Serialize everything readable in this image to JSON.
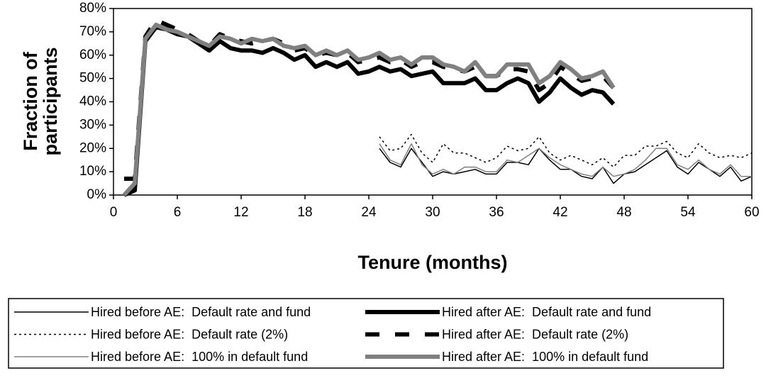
{
  "chart_data": {
    "type": "line",
    "xlabel": "Tenure (months)",
    "ylabel": [
      "Fraction of",
      "participants"
    ],
    "x": [
      1,
      2,
      3,
      4,
      5,
      6,
      7,
      8,
      9,
      10,
      11,
      12,
      13,
      14,
      15,
      16,
      17,
      18,
      19,
      20,
      21,
      22,
      23,
      24,
      25,
      26,
      27,
      28,
      29,
      30,
      31,
      32,
      33,
      34,
      35,
      36,
      37,
      38,
      39,
      40,
      41,
      42,
      43,
      44,
      45,
      46,
      47,
      48,
      49,
      50,
      51,
      52,
      53,
      54,
      55,
      56,
      57,
      58,
      59,
      60
    ],
    "xlim": [
      0,
      60
    ],
    "xticks": [
      0,
      6,
      12,
      18,
      24,
      30,
      36,
      42,
      48,
      54,
      60
    ],
    "ylim": [
      0,
      80
    ],
    "yticks": [
      {
        "value": 0,
        "label": "0%"
      },
      {
        "value": 10,
        "label": "10%"
      },
      {
        "value": 20,
        "label": "20%"
      },
      {
        "value": 30,
        "label": "30%"
      },
      {
        "value": 40,
        "label": "40%"
      },
      {
        "value": 50,
        "label": "50%"
      },
      {
        "value": 60,
        "label": "60%"
      },
      {
        "value": 70,
        "label": "70%"
      },
      {
        "value": 80,
        "label": "80%"
      }
    ],
    "series": [
      {
        "name": "Hired before AE:  Default rate and fund",
        "color": "#000000",
        "line_width": 1.5,
        "dash": "solid",
        "values": [
          null,
          null,
          null,
          null,
          null,
          null,
          null,
          null,
          null,
          null,
          null,
          null,
          null,
          null,
          null,
          null,
          null,
          null,
          null,
          null,
          null,
          null,
          null,
          null,
          20,
          14,
          12,
          20,
          14,
          8,
          10,
          9,
          10,
          11,
          9,
          9,
          14,
          14,
          13,
          20,
          15,
          11,
          11,
          8,
          7,
          12,
          5,
          9,
          10,
          13,
          16,
          19,
          12,
          9,
          14,
          11,
          8,
          12,
          6,
          8
        ]
      },
      {
        "name": "Hired before AE:  Default rate (2%)",
        "color": "#000000",
        "line_width": 1.5,
        "dash": "dotted",
        "values": [
          null,
          null,
          null,
          null,
          null,
          null,
          null,
          null,
          null,
          null,
          null,
          null,
          null,
          null,
          null,
          null,
          null,
          null,
          null,
          null,
          null,
          null,
          null,
          null,
          25,
          19,
          20,
          26,
          18,
          14,
          22,
          18,
          18,
          16,
          14,
          16,
          21,
          19,
          20,
          25,
          18,
          15,
          17,
          15,
          13,
          16,
          12,
          17,
          17,
          21,
          21,
          23,
          18,
          16,
          22,
          18,
          16,
          17,
          16,
          18
        ]
      },
      {
        "name": "Hired before AE:  100% in default fund",
        "color": "#808080",
        "line_width": 1.5,
        "dash": "solid",
        "values": [
          null,
          null,
          null,
          null,
          null,
          null,
          null,
          null,
          null,
          null,
          null,
          null,
          null,
          null,
          null,
          null,
          null,
          null,
          null,
          null,
          null,
          null,
          null,
          null,
          22,
          15,
          13,
          22,
          13,
          9,
          11,
          9,
          12,
          12,
          10,
          10,
          15,
          14,
          17,
          20,
          16,
          13,
          11,
          9,
          8,
          12,
          8,
          9,
          11,
          15,
          20,
          20,
          13,
          11,
          15,
          11,
          9,
          13,
          8,
          8
        ]
      },
      {
        "name": "Hired after AE:  Default rate and fund",
        "color": "#000000",
        "line_width": 6,
        "dash": "solid",
        "values": [
          0,
          2,
          66,
          72,
          71,
          69,
          68,
          65,
          62,
          66,
          63,
          62,
          62,
          61,
          63,
          61,
          58,
          60,
          55,
          57,
          55,
          57,
          52,
          53,
          55,
          53,
          54,
          51,
          52,
          53,
          48,
          48,
          48,
          50,
          45,
          45,
          48,
          50,
          48,
          40,
          44,
          50,
          46,
          43,
          45,
          44,
          39,
          null,
          null,
          null,
          null,
          null,
          null,
          null,
          null,
          null,
          null,
          null,
          null,
          null
        ]
      },
      {
        "name": "Hired after AE:  Default rate (2%)",
        "color": "#000000",
        "line_width": 6,
        "dash": "dashed",
        "values": [
          7,
          7,
          68,
          75,
          73,
          71,
          69,
          66,
          64,
          69,
          67,
          66,
          65,
          66,
          67,
          65,
          62,
          63,
          60,
          61,
          60,
          61,
          57,
          58,
          59,
          57,
          58,
          55,
          57,
          57,
          55,
          54,
          53,
          55,
          51,
          51,
          54,
          54,
          53,
          45,
          48,
          55,
          52,
          49,
          50,
          51,
          46,
          null,
          null,
          null,
          null,
          null,
          null,
          null,
          null,
          null,
          null,
          null,
          null,
          null
        ]
      },
      {
        "name": "Hired after AE:  100% in default fund",
        "color": "#808080",
        "line_width": 6,
        "dash": "solid",
        "values": [
          0,
          5,
          67,
          73,
          71,
          70,
          68,
          66,
          64,
          68,
          67,
          65,
          67,
          66,
          67,
          64,
          63,
          64,
          60,
          62,
          60,
          62,
          58,
          59,
          61,
          58,
          59,
          56,
          59,
          59,
          56,
          55,
          53,
          57,
          51,
          51,
          56,
          56,
          56,
          48,
          51,
          57,
          54,
          50,
          51,
          53,
          46,
          null,
          null,
          null,
          null,
          null,
          null,
          null,
          null,
          null,
          null,
          null,
          null,
          null
        ]
      }
    ]
  }
}
